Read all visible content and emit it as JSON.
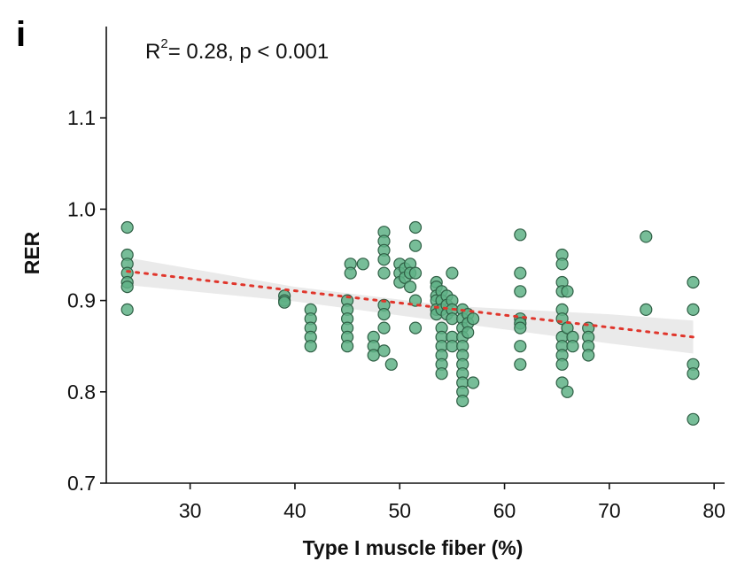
{
  "panel_label": "i",
  "colors": {
    "point_fill": "#5fb286",
    "point_stroke": "#2f5f45",
    "trend_line": "#e0362c",
    "confidence_band": "#e6e6e6",
    "axis": "#111111"
  },
  "chart_data": {
    "type": "scatter",
    "title": "",
    "xlabel": "Type I muscle fiber (%)",
    "ylabel": "RER",
    "xlim": [
      22,
      81
    ],
    "ylim": [
      0.7,
      1.2
    ],
    "x_ticks": [
      30,
      40,
      50,
      60,
      70,
      80
    ],
    "y_ticks": [
      0.7,
      0.8,
      0.9,
      1.0,
      1.1
    ],
    "x_tick_labels": [
      "30",
      "40",
      "50",
      "60",
      "70",
      "80"
    ],
    "y_tick_labels": [
      "0.7",
      "0.8",
      "0.9",
      "1.0",
      "1.1"
    ],
    "grid": false,
    "annotation": {
      "r2_prefix": "R",
      "r2_sup": "2",
      "r2_rest": "= 0.28, p < 0.001"
    },
    "trend_line": {
      "style": "dotted",
      "x": [
        24,
        78
      ],
      "y": [
        0.932,
        0.86
      ]
    },
    "confidence_band": {
      "x": [
        24,
        40,
        55,
        70,
        78
      ],
      "lower": [
        0.917,
        0.899,
        0.876,
        0.853,
        0.842
      ],
      "upper": [
        0.947,
        0.915,
        0.894,
        0.885,
        0.878
      ]
    },
    "points": [
      [
        24,
        0.98
      ],
      [
        24,
        0.95
      ],
      [
        24,
        0.94
      ],
      [
        24,
        0.93
      ],
      [
        24,
        0.92
      ],
      [
        24,
        0.915
      ],
      [
        24,
        0.89
      ],
      [
        39,
        0.905
      ],
      [
        39,
        0.9
      ],
      [
        39,
        0.898
      ],
      [
        41.5,
        0.89
      ],
      [
        41.5,
        0.88
      ],
      [
        41.5,
        0.87
      ],
      [
        41.5,
        0.86
      ],
      [
        41.5,
        0.85
      ],
      [
        45,
        0.9
      ],
      [
        45,
        0.89
      ],
      [
        45,
        0.88
      ],
      [
        45,
        0.87
      ],
      [
        45,
        0.86
      ],
      [
        45,
        0.85
      ],
      [
        45.3,
        0.94
      ],
      [
        45.3,
        0.93
      ],
      [
        46.5,
        0.94
      ],
      [
        47.5,
        0.86
      ],
      [
        47.5,
        0.85
      ],
      [
        47.5,
        0.84
      ],
      [
        48.5,
        0.975
      ],
      [
        48.5,
        0.965
      ],
      [
        48.5,
        0.955
      ],
      [
        48.5,
        0.945
      ],
      [
        48.5,
        0.93
      ],
      [
        48.5,
        0.895
      ],
      [
        48.5,
        0.885
      ],
      [
        48.5,
        0.87
      ],
      [
        48.5,
        0.845
      ],
      [
        49.2,
        0.83
      ],
      [
        50,
        0.94
      ],
      [
        50,
        0.93
      ],
      [
        50,
        0.92
      ],
      [
        50.5,
        0.935
      ],
      [
        50.5,
        0.925
      ],
      [
        51,
        0.94
      ],
      [
        51,
        0.93
      ],
      [
        51,
        0.915
      ],
      [
        51.5,
        0.98
      ],
      [
        51.5,
        0.96
      ],
      [
        51.5,
        0.93
      ],
      [
        51.5,
        0.9
      ],
      [
        51.5,
        0.87
      ],
      [
        53.5,
        0.92
      ],
      [
        53.5,
        0.915
      ],
      [
        53.5,
        0.905
      ],
      [
        53.5,
        0.9
      ],
      [
        53.5,
        0.89
      ],
      [
        53.5,
        0.885
      ],
      [
        54,
        0.91
      ],
      [
        54,
        0.9
      ],
      [
        54,
        0.89
      ],
      [
        54,
        0.87
      ],
      [
        54,
        0.86
      ],
      [
        54,
        0.85
      ],
      [
        54,
        0.84
      ],
      [
        54,
        0.83
      ],
      [
        54,
        0.82
      ],
      [
        54.5,
        0.905
      ],
      [
        54.5,
        0.895
      ],
      [
        54.5,
        0.885
      ],
      [
        55,
        0.93
      ],
      [
        55,
        0.9
      ],
      [
        55,
        0.89
      ],
      [
        55,
        0.88
      ],
      [
        55,
        0.86
      ],
      [
        55,
        0.85
      ],
      [
        56,
        0.89
      ],
      [
        56,
        0.88
      ],
      [
        56,
        0.87
      ],
      [
        56,
        0.86
      ],
      [
        56,
        0.85
      ],
      [
        56,
        0.84
      ],
      [
        56,
        0.83
      ],
      [
        56,
        0.82
      ],
      [
        56,
        0.81
      ],
      [
        56,
        0.8
      ],
      [
        56,
        0.79
      ],
      [
        56.5,
        0.885
      ],
      [
        56.5,
        0.875
      ],
      [
        56.5,
        0.865
      ],
      [
        57,
        0.88
      ],
      [
        57,
        0.81
      ],
      [
        61.5,
        0.972
      ],
      [
        61.5,
        0.93
      ],
      [
        61.5,
        0.91
      ],
      [
        61.5,
        0.88
      ],
      [
        61.5,
        0.875
      ],
      [
        61.5,
        0.87
      ],
      [
        61.5,
        0.85
      ],
      [
        61.5,
        0.83
      ],
      [
        65.5,
        0.95
      ],
      [
        65.5,
        0.94
      ],
      [
        65.5,
        0.92
      ],
      [
        65.5,
        0.91
      ],
      [
        65.5,
        0.89
      ],
      [
        65.5,
        0.88
      ],
      [
        65.5,
        0.86
      ],
      [
        65.5,
        0.85
      ],
      [
        65.5,
        0.84
      ],
      [
        65.5,
        0.83
      ],
      [
        65.5,
        0.81
      ],
      [
        66,
        0.91
      ],
      [
        66,
        0.87
      ],
      [
        66,
        0.8
      ],
      [
        66.5,
        0.86
      ],
      [
        66.5,
        0.85
      ],
      [
        68,
        0.87
      ],
      [
        68,
        0.86
      ],
      [
        68,
        0.85
      ],
      [
        68,
        0.84
      ],
      [
        73.5,
        0.97
      ],
      [
        73.5,
        0.89
      ],
      [
        78,
        0.92
      ],
      [
        78,
        0.89
      ],
      [
        78,
        0.83
      ],
      [
        78,
        0.82
      ],
      [
        78,
        0.77
      ]
    ]
  }
}
